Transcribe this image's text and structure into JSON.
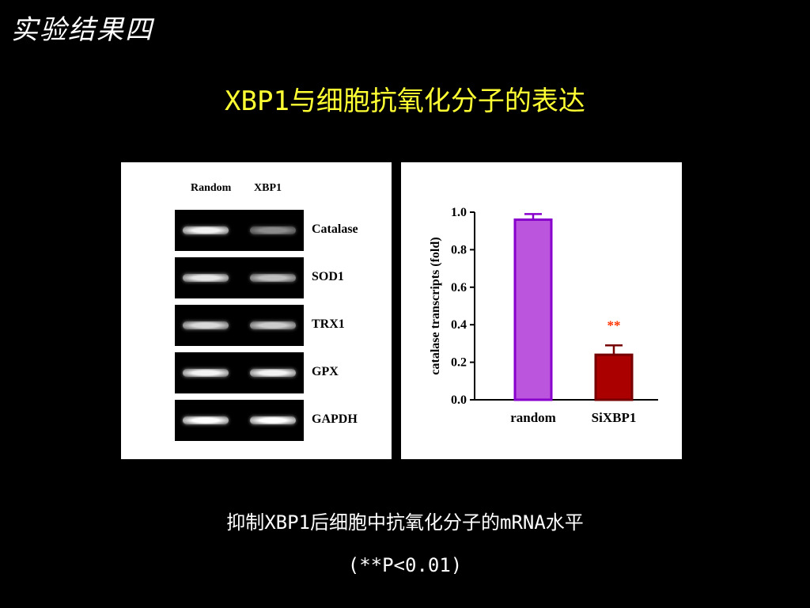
{
  "slide": {
    "corner_title": "实验结果四",
    "main_title": "XBP1与细胞抗氧化分子的表达",
    "caption_line1": "抑制XBP1后细胞中抗氧化分子的mRNA水平",
    "caption_line2": "(**P<0.01)"
  },
  "gel": {
    "lane_headers": [
      "Random",
      "XBP1"
    ],
    "rows": [
      {
        "label": "Catalase",
        "random_intensity": 0.95,
        "xbp1_intensity": 0.55
      },
      {
        "label": "SOD1",
        "random_intensity": 0.9,
        "xbp1_intensity": 0.75
      },
      {
        "label": "TRX1",
        "random_intensity": 0.85,
        "xbp1_intensity": 0.8
      },
      {
        "label": "GPX",
        "random_intensity": 0.95,
        "xbp1_intensity": 0.95
      },
      {
        "label": "GAPDH",
        "random_intensity": 1.0,
        "xbp1_intensity": 1.0
      }
    ]
  },
  "chart_data": {
    "type": "bar",
    "categories": [
      "random",
      "SiXBP1"
    ],
    "values": [
      0.96,
      0.24
    ],
    "errors": [
      0.03,
      0.05
    ],
    "ylabel": "catalase transcripts (fold)",
    "xlabel": "",
    "ylim": [
      0.0,
      1.0
    ],
    "yticks": [
      "0.0",
      "0.2",
      "0.4",
      "0.6",
      "0.8",
      "1.0"
    ],
    "bar_fill": [
      "#bb55dd",
      "#aa0000"
    ],
    "bar_stroke": [
      "#8800cc",
      "#770000"
    ],
    "annotation": "**",
    "annotation_color": "#ff3300"
  }
}
